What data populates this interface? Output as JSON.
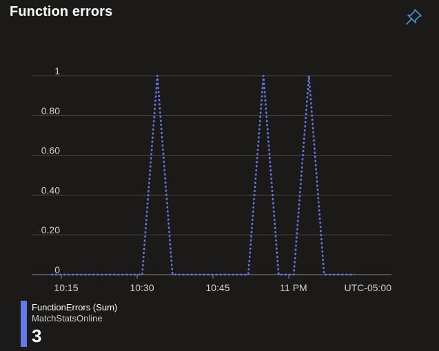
{
  "tile": {
    "title": "Function errors",
    "pin_icon": "pin-icon"
  },
  "chart_data": {
    "type": "line",
    "title": "",
    "xlabel": "",
    "ylabel": "",
    "x": [
      "10:13",
      "10:16",
      "10:19",
      "10:22",
      "10:25",
      "10:28",
      "10:31",
      "10:34",
      "10:37",
      "10:40",
      "10:43",
      "10:46",
      "10:49",
      "10:52",
      "10:55",
      "10:58",
      "11:01",
      "11:04",
      "11:07",
      "11:10",
      "11:13"
    ],
    "x_ticks": [
      "10:15",
      "10:30",
      "10:45",
      "11 PM"
    ],
    "timezone_label": "UTC-05:00",
    "y_ticks": [
      "0",
      "0.20",
      "0.40",
      "0.60",
      "0.80",
      "1"
    ],
    "ylim": [
      0,
      1
    ],
    "grid": true,
    "series": [
      {
        "name": "FunctionErrors (Sum)",
        "color": "#6478e6",
        "line_style": "dotted",
        "values": [
          0,
          0,
          0,
          0,
          0,
          0,
          0,
          1,
          0,
          0,
          0,
          0,
          0,
          0,
          1,
          0,
          0,
          1,
          0,
          0,
          0
        ]
      }
    ]
  },
  "legend": {
    "metric": "FunctionErrors (Sum)",
    "resource": "MatchStatsOnline",
    "value": "3",
    "color": "#6478e6"
  }
}
